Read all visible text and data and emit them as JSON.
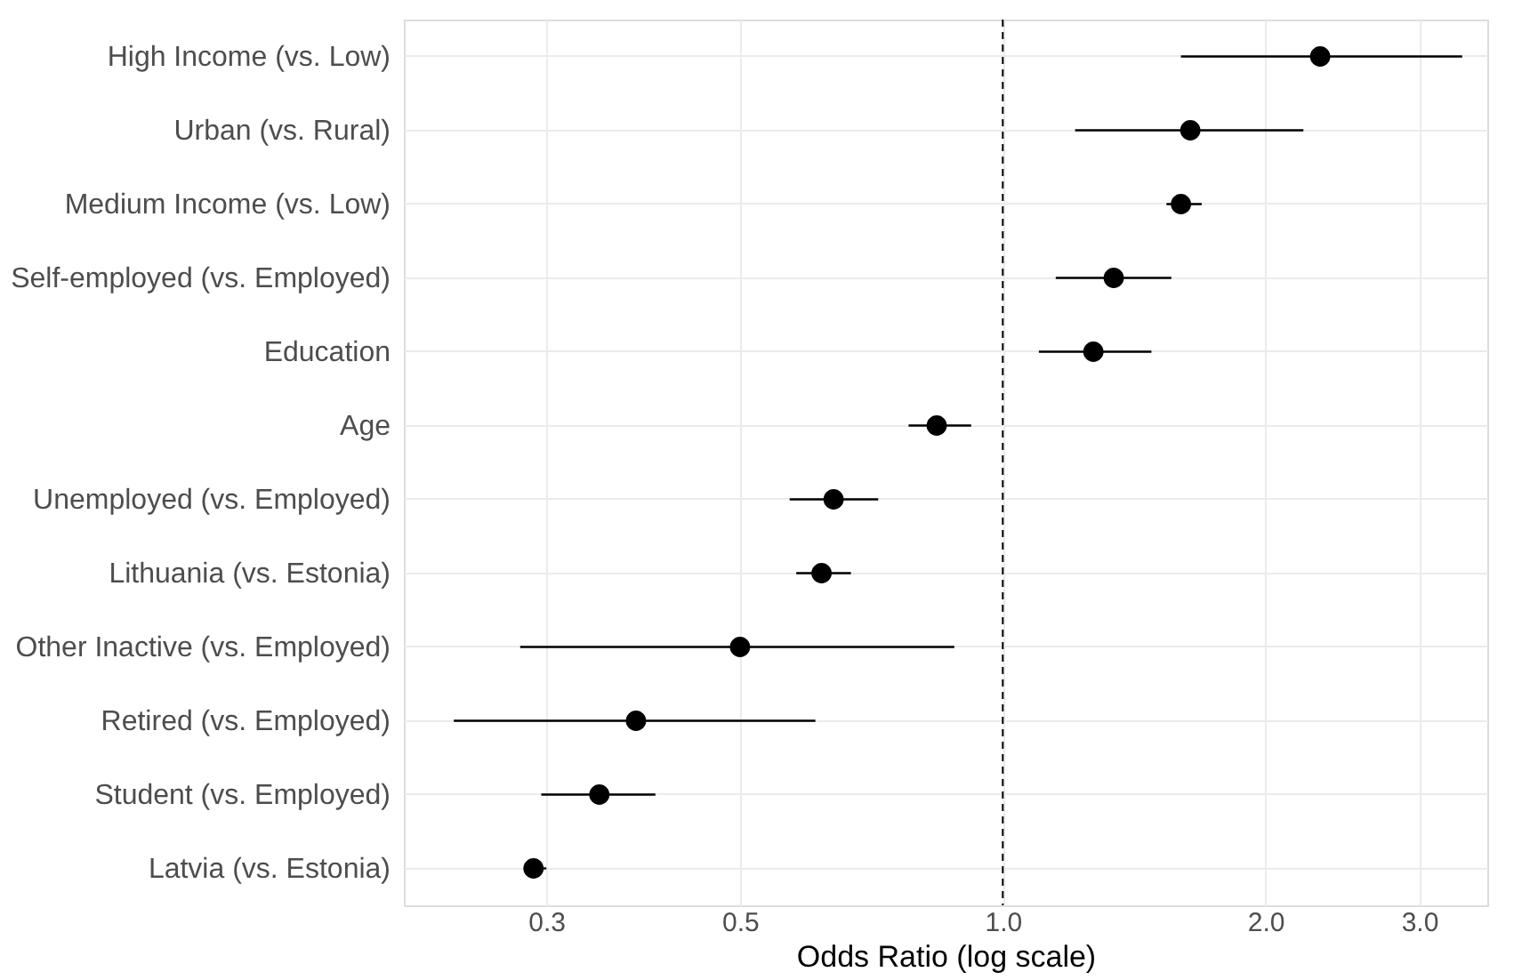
{
  "chart_data": {
    "type": "scatter",
    "orientation": "horizontal",
    "xlabel": "Odds Ratio (log scale)",
    "log": "x",
    "grid": true,
    "marker": "circle",
    "categories": [
      "High Income (vs. Low)",
      "Urban (vs. Rural)",
      "Medium Income (vs. Low)",
      "Self-employed (vs. Employed)",
      "Education",
      "Age",
      "Unemployed (vs. Employed)",
      "Lithuania (vs. Estonia)",
      "Other Inactive (vs. Employed)",
      "Retired (vs. Employed)",
      "Student (vs. Employed)",
      "Latvia (vs. Estonia)"
    ],
    "series": [
      {
        "color": "#000000",
        "values": [
          2.31,
          1.64,
          1.6,
          1.34,
          1.27,
          0.84,
          0.64,
          0.62,
          0.5,
          0.38,
          0.345,
          0.29
        ],
        "errors": [
          [
            1.6,
            3.36
          ],
          [
            1.21,
            2.21
          ],
          [
            1.54,
            1.69
          ],
          [
            1.15,
            1.56
          ],
          [
            1.1,
            1.48
          ],
          [
            0.78,
            0.92
          ],
          [
            0.57,
            0.72
          ],
          [
            0.58,
            0.67
          ],
          [
            0.28,
            0.88
          ],
          [
            0.235,
            0.61
          ],
          [
            0.296,
            0.4
          ],
          [
            0.285,
            0.3
          ]
        ]
      }
    ],
    "xlim": [
      0.206,
      3.59
    ],
    "xticks": [
      {
        "value": 0.3,
        "label": "0.3"
      },
      {
        "value": 0.5,
        "label": "0.5"
      },
      {
        "value": 1,
        "label": "1.0"
      },
      {
        "value": 2,
        "label": "2.0"
      },
      {
        "value": 3,
        "label": "3.0"
      }
    ],
    "ref_lines": [
      {
        "axis": "x",
        "value": 1,
        "line_style": "dashed",
        "color": "#000000"
      }
    ]
  }
}
